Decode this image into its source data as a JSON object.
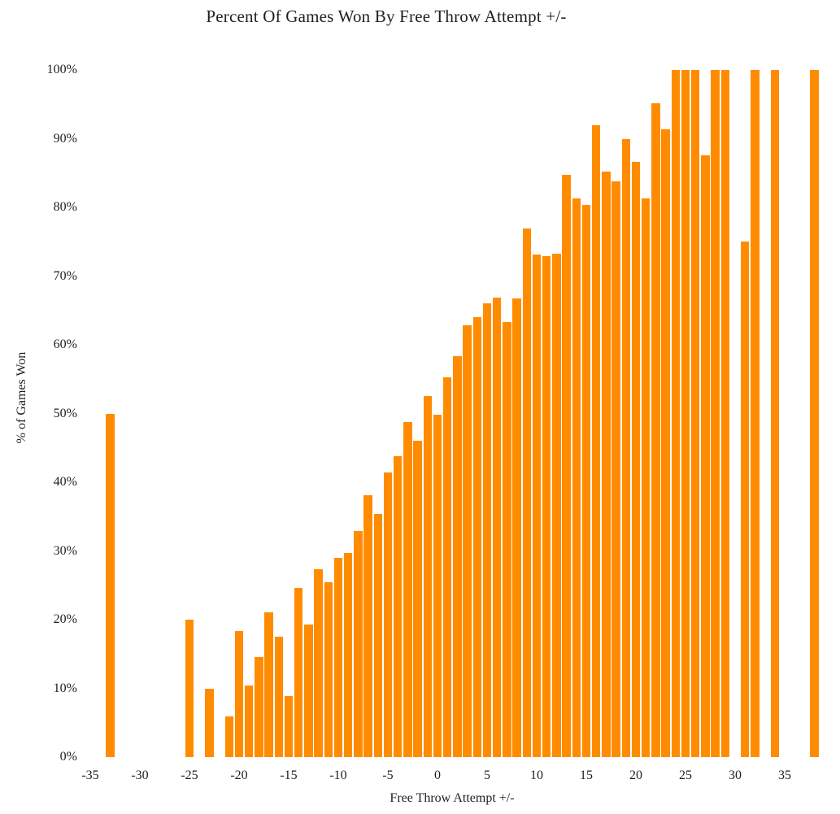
{
  "chart_data": {
    "type": "bar",
    "title": "Percent Of Games Won By Free Throw Attempt +/-",
    "xlabel": "Free Throw Attempt +/-",
    "ylabel": "% of Games Won",
    "bar_color": "#FF8C00",
    "grid": false,
    "legend": "none",
    "xlim": [
      -36.5,
      39
    ],
    "ylim": [
      0,
      100
    ],
    "x_ticks": [
      {
        "v": -35,
        "label": "-35"
      },
      {
        "v": -30,
        "label": "-30"
      },
      {
        "v": -25,
        "label": "-25"
      },
      {
        "v": -20,
        "label": "-20"
      },
      {
        "v": -15,
        "label": "-15"
      },
      {
        "v": -10,
        "label": "-10"
      },
      {
        "v": -5,
        "label": "-5"
      },
      {
        "v": 0,
        "label": "0"
      },
      {
        "v": 5,
        "label": "5"
      },
      {
        "v": 10,
        "label": "10"
      },
      {
        "v": 15,
        "label": "15"
      },
      {
        "v": 20,
        "label": "20"
      },
      {
        "v": 25,
        "label": "25"
      },
      {
        "v": 30,
        "label": "30"
      },
      {
        "v": 35,
        "label": "35"
      }
    ],
    "y_ticks": [
      {
        "v": 0,
        "label": "0%"
      },
      {
        "v": 10,
        "label": "10%"
      },
      {
        "v": 20,
        "label": "20%"
      },
      {
        "v": 30,
        "label": "30%"
      },
      {
        "v": 40,
        "label": "40%"
      },
      {
        "v": 50,
        "label": "50%"
      },
      {
        "v": 60,
        "label": "60%"
      },
      {
        "v": 70,
        "label": "70%"
      },
      {
        "v": 80,
        "label": "80%"
      },
      {
        "v": 90,
        "label": "90%"
      },
      {
        "v": 100,
        "label": "100%"
      }
    ],
    "points": [
      {
        "x": -33,
        "y": 50.0
      },
      {
        "x": -25,
        "y": 20.0
      },
      {
        "x": -23,
        "y": 10.0
      },
      {
        "x": -21,
        "y": 5.9
      },
      {
        "x": -20,
        "y": 18.4
      },
      {
        "x": -19,
        "y": 10.4
      },
      {
        "x": -18,
        "y": 14.5
      },
      {
        "x": -17,
        "y": 21.1
      },
      {
        "x": -16,
        "y": 17.5
      },
      {
        "x": -15,
        "y": 8.9
      },
      {
        "x": -14,
        "y": 24.6
      },
      {
        "x": -13,
        "y": 19.3
      },
      {
        "x": -12,
        "y": 27.3
      },
      {
        "x": -11,
        "y": 25.5
      },
      {
        "x": -10,
        "y": 29.0
      },
      {
        "x": -9,
        "y": 29.7
      },
      {
        "x": -8,
        "y": 32.9
      },
      {
        "x": -7,
        "y": 38.1
      },
      {
        "x": -6,
        "y": 35.4
      },
      {
        "x": -5,
        "y": 41.4
      },
      {
        "x": -4,
        "y": 43.8
      },
      {
        "x": -3,
        "y": 48.7
      },
      {
        "x": -2,
        "y": 46.0
      },
      {
        "x": -1,
        "y": 52.6
      },
      {
        "x": 0,
        "y": 49.8
      },
      {
        "x": 1,
        "y": 55.3
      },
      {
        "x": 2,
        "y": 58.3
      },
      {
        "x": 3,
        "y": 62.8
      },
      {
        "x": 4,
        "y": 64.0
      },
      {
        "x": 5,
        "y": 66.0
      },
      {
        "x": 6,
        "y": 66.9
      },
      {
        "x": 7,
        "y": 63.3
      },
      {
        "x": 8,
        "y": 66.8
      },
      {
        "x": 9,
        "y": 76.9
      },
      {
        "x": 10,
        "y": 73.1
      },
      {
        "x": 11,
        "y": 72.9
      },
      {
        "x": 12,
        "y": 73.3
      },
      {
        "x": 13,
        "y": 84.7
      },
      {
        "x": 14,
        "y": 81.3
      },
      {
        "x": 15,
        "y": 80.3
      },
      {
        "x": 16,
        "y": 91.9
      },
      {
        "x": 17,
        "y": 85.2
      },
      {
        "x": 18,
        "y": 83.8
      },
      {
        "x": 19,
        "y": 90.0
      },
      {
        "x": 20,
        "y": 86.6
      },
      {
        "x": 21,
        "y": 81.3
      },
      {
        "x": 22,
        "y": 95.1
      },
      {
        "x": 23,
        "y": 91.4
      },
      {
        "x": 24,
        "y": 100
      },
      {
        "x": 25,
        "y": 100
      },
      {
        "x": 26,
        "y": 100
      },
      {
        "x": 27,
        "y": 87.6
      },
      {
        "x": 28,
        "y": 100
      },
      {
        "x": 29,
        "y": 100
      },
      {
        "x": 31,
        "y": 75.0
      },
      {
        "x": 32,
        "y": 100
      },
      {
        "x": 34,
        "y": 100
      },
      {
        "x": 38,
        "y": 100
      }
    ]
  }
}
